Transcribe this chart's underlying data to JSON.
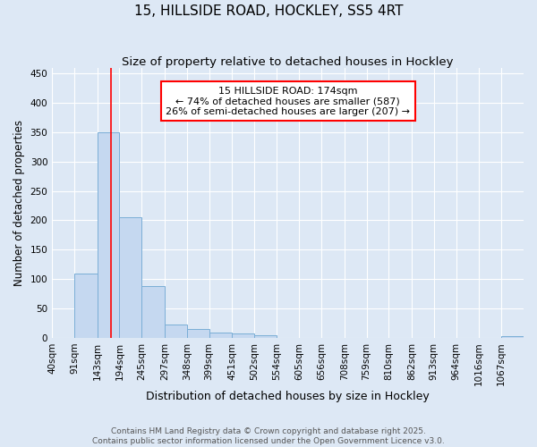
{
  "title": "15, HILLSIDE ROAD, HOCKLEY, SS5 4RT",
  "subtitle": "Size of property relative to detached houses in Hockley",
  "xlabel": "Distribution of detached houses by size in Hockley",
  "ylabel": "Number of detached properties",
  "bin_labels": [
    "40sqm",
    "91sqm",
    "143sqm",
    "194sqm",
    "245sqm",
    "297sqm",
    "348sqm",
    "399sqm",
    "451sqm",
    "502sqm",
    "554sqm",
    "605sqm",
    "656sqm",
    "708sqm",
    "759sqm",
    "810sqm",
    "862sqm",
    "913sqm",
    "964sqm",
    "1016sqm",
    "1067sqm"
  ],
  "bin_edges": [
    40,
    91,
    143,
    194,
    245,
    297,
    348,
    399,
    451,
    502,
    554,
    605,
    656,
    708,
    759,
    810,
    862,
    913,
    964,
    1016,
    1067,
    1118
  ],
  "bar_heights": [
    0,
    110,
    350,
    205,
    88,
    22,
    15,
    9,
    8,
    5,
    0,
    0,
    0,
    0,
    0,
    0,
    0,
    0,
    0,
    0,
    3
  ],
  "bar_color": "#c5d8f0",
  "bar_edgecolor": "#7aaed6",
  "background_color": "#dde8f5",
  "grid_color": "#ffffff",
  "vline_x": 174,
  "vline_color": "red",
  "annotation_text": "15 HILLSIDE ROAD: 174sqm\n← 74% of detached houses are smaller (587)\n26% of semi-detached houses are larger (207) →",
  "annotation_box_edgecolor": "red",
  "annotation_box_facecolor": "white",
  "ylim": [
    0,
    460
  ],
  "yticks": [
    0,
    50,
    100,
    150,
    200,
    250,
    300,
    350,
    400,
    450
  ],
  "footer_text": "Contains HM Land Registry data © Crown copyright and database right 2025.\nContains public sector information licensed under the Open Government Licence v3.0.",
  "title_fontsize": 11,
  "subtitle_fontsize": 9.5,
  "annot_fontsize": 8,
  "xlabel_fontsize": 9,
  "ylabel_fontsize": 8.5,
  "tick_fontsize": 7.5,
  "footer_fontsize": 6.5
}
